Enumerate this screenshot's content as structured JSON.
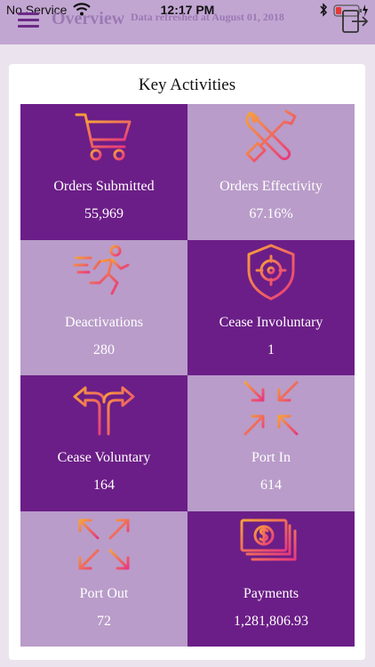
{
  "status_bar": {
    "carrier": "No Service",
    "time": "12:17 PM"
  },
  "header": {
    "title": "Overview",
    "refresh_text": "Data refreshed at August 01, 2018",
    "menu_icon": "hamburger-icon",
    "logout_icon": "logout-icon"
  },
  "card": {
    "title": "Key Activities",
    "tiles": [
      {
        "label": "Orders Submitted",
        "value": "55,969",
        "icon": "shopping-cart-icon",
        "style": "dark"
      },
      {
        "label": "Orders Effectivity",
        "value": "67.16%",
        "icon": "tools-icon",
        "style": "light"
      },
      {
        "label": "Deactivations",
        "value": "280",
        "icon": "running-person-icon",
        "style": "light"
      },
      {
        "label": "Cease Involuntary",
        "value": "1",
        "icon": "shield-target-icon",
        "style": "dark"
      },
      {
        "label": "Cease Voluntary",
        "value": "164",
        "icon": "split-arrows-icon",
        "style": "dark"
      },
      {
        "label": "Port In",
        "value": "614",
        "icon": "arrows-inward-icon",
        "style": "light"
      },
      {
        "label": "Port Out",
        "value": "72",
        "icon": "arrows-outward-icon",
        "style": "light"
      },
      {
        "label": "Payments",
        "value": "1,281,806.93",
        "icon": "money-stack-icon",
        "style": "dark"
      }
    ]
  },
  "colors": {
    "header_bg": "#c2a6d2",
    "tile_dark": "#6b1e87",
    "tile_light": "#b99cc9",
    "icon_gradient_start": "#f7a13a",
    "icon_gradient_end": "#e8387e"
  }
}
